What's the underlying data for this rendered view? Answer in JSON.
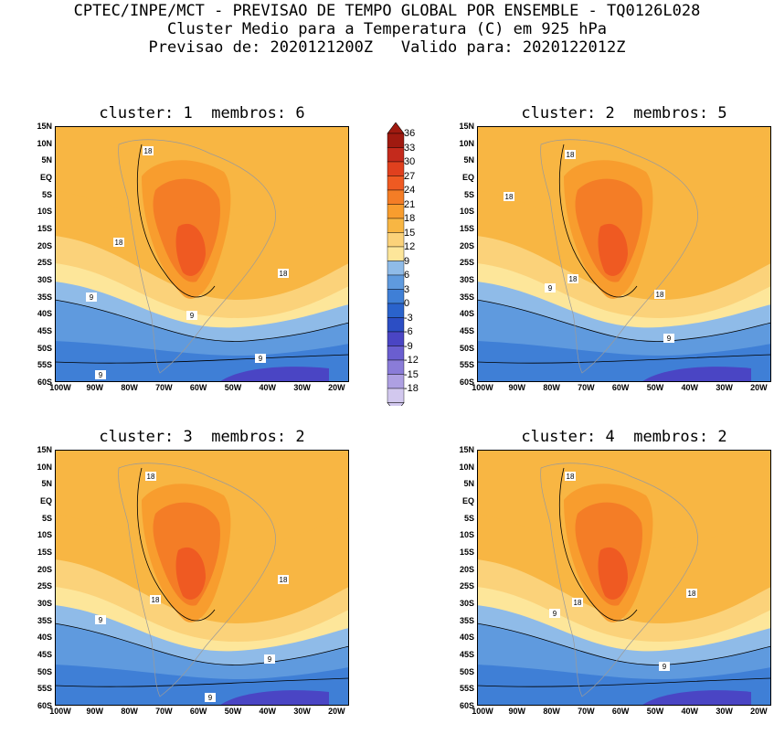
{
  "header": {
    "line1": "CPTEC/INPE/MCT - PREVISAO DE TEMPO GLOBAL POR ENSEMBLE - TQ0126L028",
    "line2": "Cluster Medio para a Temperatura (C) em 925 hPa",
    "line3": "Previsao de: 2020121200Z   Valido para: 2020122012Z"
  },
  "panels": [
    {
      "title": "cluster: 1  membros: 6",
      "contour_labels": [
        "18",
        "18",
        "18",
        "9",
        "9",
        "9",
        "9"
      ]
    },
    {
      "title": "cluster: 2  membros: 5",
      "contour_labels": [
        "18",
        "18",
        "18",
        "18",
        "9",
        "9"
      ]
    },
    {
      "title": "cluster: 3  membros: 2",
      "contour_labels": [
        "18",
        "18",
        "18",
        "9",
        "9",
        "9"
      ]
    },
    {
      "title": "cluster: 4  membros: 2",
      "contour_labels": [
        "18",
        "18",
        "18",
        "9",
        "9"
      ]
    }
  ],
  "axes": {
    "lat_ticks": [
      "15N",
      "10N",
      "5N",
      "EQ",
      "5S",
      "10S",
      "15S",
      "20S",
      "25S",
      "30S",
      "35S",
      "40S",
      "45S",
      "50S",
      "55S",
      "60S"
    ],
    "lon_ticks": [
      "100W",
      "90W",
      "80W",
      "70W",
      "60W",
      "50W",
      "40W",
      "30W",
      "20W"
    ]
  },
  "colorbar": {
    "labels": [
      "36",
      "33",
      "30",
      "27",
      "24",
      "21",
      "18",
      "15",
      "12",
      "9",
      "6",
      "3",
      "0",
      "-3",
      "-6",
      "-9",
      "-12",
      "-15",
      "-18"
    ],
    "colors": [
      "#a01a10",
      "#c42a1c",
      "#e0401e",
      "#ef5a22",
      "#f47d26",
      "#f89d2e",
      "#f8b643",
      "#fbd27a",
      "#fde69a",
      "#8fbbe8",
      "#5f9ade",
      "#3f7fd6",
      "#2a63cc",
      "#2c4ec4",
      "#4a45c4",
      "#6a5ed0",
      "#8a7cd8",
      "#aea0e2",
      "#d2c8ee"
    ]
  }
}
